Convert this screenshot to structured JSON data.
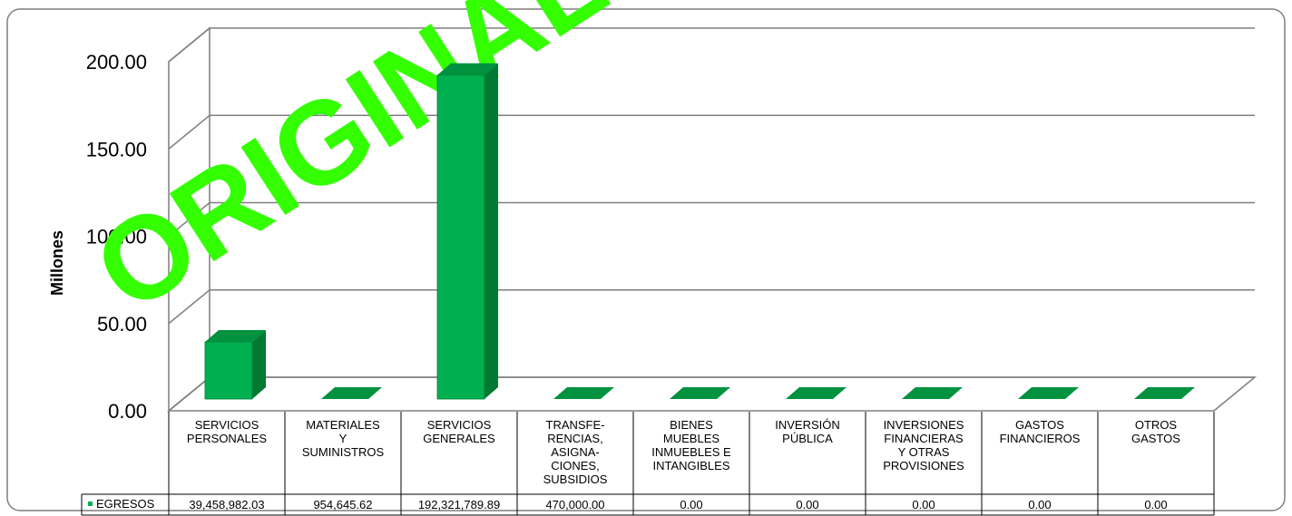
{
  "chart_data": {
    "type": "bar",
    "title": "",
    "ylabel": "Millones",
    "ylim": [
      0,
      200
    ],
    "yticks": [
      "0.00",
      "50.00",
      "100.00",
      "150.00",
      "200.00"
    ],
    "grid": true,
    "legend": "table",
    "categories": [
      [
        "SERVICIOS",
        "PERSONALES"
      ],
      [
        "MATERIALES",
        "Y",
        "SUMINISTROS"
      ],
      [
        "SERVICIOS",
        "GENERALES"
      ],
      [
        "TRANSFE-",
        "RENCIAS,",
        "ASIGNA-",
        "CIONES,",
        "SUBSIDIOS"
      ],
      [
        "BIENES",
        "MUEBLES",
        "INMUEBLES E",
        "INTANGIBLES"
      ],
      [
        "INVERSIÓN",
        "PÚBLICA"
      ],
      [
        "INVERSIONES",
        "FINANCIERAS",
        "Y OTRAS",
        "PROVISIONES"
      ],
      [
        "GASTOS",
        "FINANCIEROS"
      ],
      [
        "OTROS",
        "GASTOS"
      ]
    ],
    "series": [
      {
        "name": "EGRESOS",
        "values": [
          39.45898203,
          0.95464562,
          192.32178989,
          0.47,
          0,
          0,
          0,
          0,
          0
        ],
        "labels": [
          "39,458,982.03",
          "954,645.62",
          "192,321,789.89",
          "470,000.00",
          "0.00",
          "0.00",
          "0.00",
          "0.00",
          "0.00"
        ]
      }
    ]
  },
  "colors": {
    "bar_front": "#00b050",
    "bar_side": "#007a33",
    "bar_top": "#00923f",
    "watermark": "#33ff00"
  },
  "watermark_text": "ORIGINAL"
}
